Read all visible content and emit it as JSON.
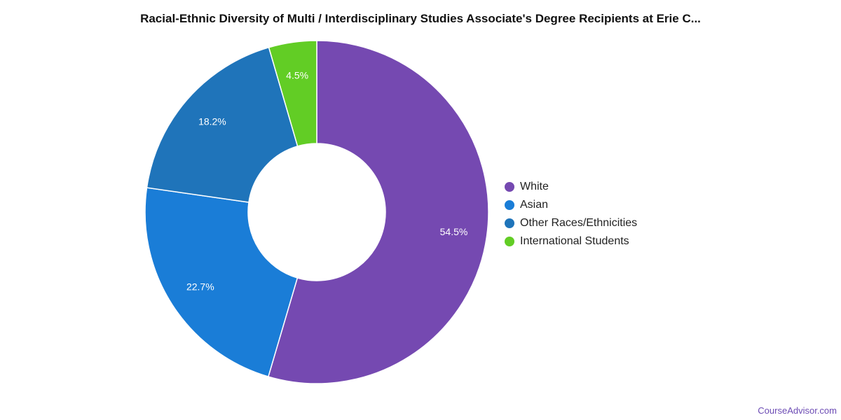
{
  "chart_data": {
    "type": "pie",
    "title": "Racial-Ethnic Diversity of Multi / Interdisciplinary Studies Associate's Degree Recipients at Erie C...",
    "categories": [
      "White",
      "Asian",
      "Other Races/Ethnicities",
      "International Students"
    ],
    "values": [
      54.5,
      22.7,
      18.2,
      4.5
    ],
    "labels": [
      "54.5%",
      "22.7%",
      "18.2%",
      "4.5%"
    ],
    "colors": [
      "#7549b1",
      "#1a7dd7",
      "#1f74ba",
      "#62cd25"
    ],
    "legend_position": "right",
    "donut": true
  },
  "credit": "CourseAdvisor.com"
}
